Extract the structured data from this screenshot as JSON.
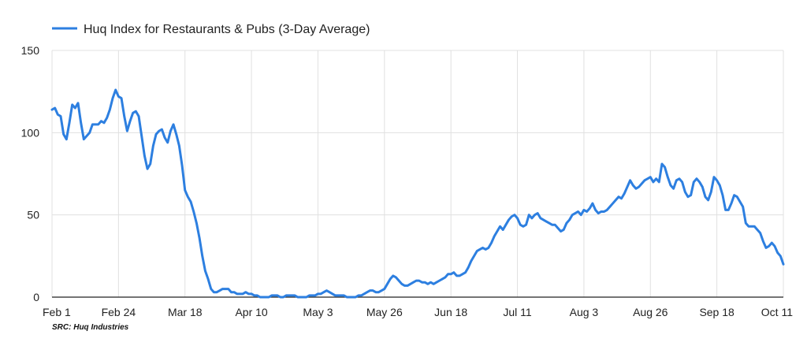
{
  "chart_data": {
    "type": "line",
    "title": "",
    "xlabel": "",
    "ylabel": "",
    "ylim": [
      0,
      150
    ],
    "y_ticks": [
      0,
      50,
      100,
      150
    ],
    "grid": true,
    "legend_position": "top-left",
    "x_ticks": [
      {
        "label": "Feb 1",
        "day": 0
      },
      {
        "label": "Feb 24",
        "day": 23
      },
      {
        "label": "Mar 18",
        "day": 46
      },
      {
        "label": "Apr 10",
        "day": 69
      },
      {
        "label": "May 3",
        "day": 92
      },
      {
        "label": "May 26",
        "day": 115
      },
      {
        "label": "Jun 18",
        "day": 138
      },
      {
        "label": "Jul 11",
        "day": 161
      },
      {
        "label": "Aug 3",
        "day": 184
      },
      {
        "label": "Aug 26",
        "day": 207
      },
      {
        "label": "Sep 18",
        "day": 230
      },
      {
        "label": "Oct 11",
        "day": 253
      }
    ],
    "series": [
      {
        "name": "Huq Index for Restaurants & Pubs (3-Day Average)",
        "color": "#2d7fe0",
        "points": [
          [
            0,
            114
          ],
          [
            1,
            115
          ],
          [
            2,
            111
          ],
          [
            3,
            110
          ],
          [
            4,
            99
          ],
          [
            5,
            96
          ],
          [
            6,
            106
          ],
          [
            7,
            117
          ],
          [
            8,
            115
          ],
          [
            9,
            118
          ],
          [
            10,
            106
          ],
          [
            11,
            96
          ],
          [
            12,
            98
          ],
          [
            13,
            100
          ],
          [
            14,
            105
          ],
          [
            15,
            105
          ],
          [
            16,
            105
          ],
          [
            17,
            107
          ],
          [
            18,
            106
          ],
          [
            19,
            109
          ],
          [
            20,
            114
          ],
          [
            21,
            121
          ],
          [
            22,
            126
          ],
          [
            23,
            122
          ],
          [
            24,
            121
          ],
          [
            25,
            110
          ],
          [
            26,
            101
          ],
          [
            27,
            107
          ],
          [
            28,
            112
          ],
          [
            29,
            113
          ],
          [
            30,
            110
          ],
          [
            31,
            98
          ],
          [
            32,
            86
          ],
          [
            33,
            78
          ],
          [
            34,
            81
          ],
          [
            35,
            92
          ],
          [
            36,
            99
          ],
          [
            37,
            101
          ],
          [
            38,
            102
          ],
          [
            39,
            97
          ],
          [
            40,
            94
          ],
          [
            41,
            101
          ],
          [
            42,
            105
          ],
          [
            43,
            99
          ],
          [
            44,
            92
          ],
          [
            45,
            80
          ],
          [
            46,
            65
          ],
          [
            47,
            61
          ],
          [
            48,
            58
          ],
          [
            49,
            52
          ],
          [
            50,
            45
          ],
          [
            51,
            36
          ],
          [
            52,
            25
          ],
          [
            53,
            16
          ],
          [
            54,
            11
          ],
          [
            55,
            5
          ],
          [
            56,
            3
          ],
          [
            57,
            3
          ],
          [
            58,
            4
          ],
          [
            59,
            5
          ],
          [
            60,
            5
          ],
          [
            61,
            5
          ],
          [
            62,
            3
          ],
          [
            63,
            3
          ],
          [
            64,
            2
          ],
          [
            65,
            2
          ],
          [
            66,
            2
          ],
          [
            67,
            3
          ],
          [
            68,
            2
          ],
          [
            69,
            2
          ],
          [
            70,
            1
          ],
          [
            71,
            1
          ],
          [
            72,
            0
          ],
          [
            73,
            0
          ],
          [
            74,
            0
          ],
          [
            75,
            0
          ],
          [
            76,
            1
          ],
          [
            77,
            1
          ],
          [
            78,
            1
          ],
          [
            79,
            0
          ],
          [
            80,
            0
          ],
          [
            81,
            1
          ],
          [
            82,
            1
          ],
          [
            83,
            1
          ],
          [
            84,
            1
          ],
          [
            85,
            0
          ],
          [
            86,
            0
          ],
          [
            87,
            0
          ],
          [
            88,
            0
          ],
          [
            89,
            1
          ],
          [
            90,
            1
          ],
          [
            91,
            1
          ],
          [
            92,
            2
          ],
          [
            93,
            2
          ],
          [
            94,
            3
          ],
          [
            95,
            4
          ],
          [
            96,
            3
          ],
          [
            97,
            2
          ],
          [
            98,
            1
          ],
          [
            99,
            1
          ],
          [
            100,
            1
          ],
          [
            101,
            1
          ],
          [
            102,
            0
          ],
          [
            103,
            0
          ],
          [
            104,
            0
          ],
          [
            105,
            0
          ],
          [
            106,
            1
          ],
          [
            107,
            1
          ],
          [
            108,
            2
          ],
          [
            109,
            3
          ],
          [
            110,
            4
          ],
          [
            111,
            4
          ],
          [
            112,
            3
          ],
          [
            113,
            3
          ],
          [
            114,
            4
          ],
          [
            115,
            5
          ],
          [
            116,
            8
          ],
          [
            117,
            11
          ],
          [
            118,
            13
          ],
          [
            119,
            12
          ],
          [
            120,
            10
          ],
          [
            121,
            8
          ],
          [
            122,
            7
          ],
          [
            123,
            7
          ],
          [
            124,
            8
          ],
          [
            125,
            9
          ],
          [
            126,
            10
          ],
          [
            127,
            10
          ],
          [
            128,
            9
          ],
          [
            129,
            9
          ],
          [
            130,
            8
          ],
          [
            131,
            9
          ],
          [
            132,
            8
          ],
          [
            133,
            9
          ],
          [
            134,
            10
          ],
          [
            135,
            11
          ],
          [
            136,
            12
          ],
          [
            137,
            14
          ],
          [
            138,
            14
          ],
          [
            139,
            15
          ],
          [
            140,
            13
          ],
          [
            141,
            13
          ],
          [
            142,
            14
          ],
          [
            143,
            15
          ],
          [
            144,
            18
          ],
          [
            145,
            22
          ],
          [
            146,
            25
          ],
          [
            147,
            28
          ],
          [
            148,
            29
          ],
          [
            149,
            30
          ],
          [
            150,
            29
          ],
          [
            151,
            30
          ],
          [
            152,
            33
          ],
          [
            153,
            37
          ],
          [
            154,
            40
          ],
          [
            155,
            43
          ],
          [
            156,
            41
          ],
          [
            157,
            44
          ],
          [
            158,
            47
          ],
          [
            159,
            49
          ],
          [
            160,
            50
          ],
          [
            161,
            48
          ],
          [
            162,
            44
          ],
          [
            163,
            43
          ],
          [
            164,
            44
          ],
          [
            165,
            50
          ],
          [
            166,
            48
          ],
          [
            167,
            50
          ],
          [
            168,
            51
          ],
          [
            169,
            48
          ],
          [
            170,
            47
          ],
          [
            171,
            46
          ],
          [
            172,
            45
          ],
          [
            173,
            44
          ],
          [
            174,
            44
          ],
          [
            175,
            42
          ],
          [
            176,
            40
          ],
          [
            177,
            41
          ],
          [
            178,
            45
          ],
          [
            179,
            47
          ],
          [
            180,
            50
          ],
          [
            181,
            51
          ],
          [
            182,
            52
          ],
          [
            183,
            50
          ],
          [
            184,
            53
          ],
          [
            185,
            52
          ],
          [
            186,
            54
          ],
          [
            187,
            57
          ],
          [
            188,
            53
          ],
          [
            189,
            51
          ],
          [
            190,
            52
          ],
          [
            191,
            52
          ],
          [
            192,
            53
          ],
          [
            193,
            55
          ],
          [
            194,
            57
          ],
          [
            195,
            59
          ],
          [
            196,
            61
          ],
          [
            197,
            60
          ],
          [
            198,
            63
          ],
          [
            199,
            67
          ],
          [
            200,
            71
          ],
          [
            201,
            68
          ],
          [
            202,
            66
          ],
          [
            203,
            67
          ],
          [
            204,
            69
          ],
          [
            205,
            71
          ],
          [
            206,
            72
          ],
          [
            207,
            73
          ],
          [
            208,
            70
          ],
          [
            209,
            72
          ],
          [
            210,
            70
          ],
          [
            211,
            81
          ],
          [
            212,
            79
          ],
          [
            213,
            73
          ],
          [
            214,
            68
          ],
          [
            215,
            66
          ],
          [
            216,
            71
          ],
          [
            217,
            72
          ],
          [
            218,
            70
          ],
          [
            219,
            64
          ],
          [
            220,
            61
          ],
          [
            221,
            62
          ],
          [
            222,
            70
          ],
          [
            223,
            72
          ],
          [
            224,
            70
          ],
          [
            225,
            67
          ],
          [
            226,
            61
          ],
          [
            227,
            59
          ],
          [
            228,
            64
          ],
          [
            229,
            73
          ],
          [
            230,
            71
          ],
          [
            231,
            68
          ],
          [
            232,
            62
          ],
          [
            233,
            53
          ],
          [
            234,
            53
          ],
          [
            235,
            57
          ],
          [
            236,
            62
          ],
          [
            237,
            61
          ],
          [
            238,
            58
          ],
          [
            239,
            55
          ],
          [
            240,
            45
          ],
          [
            241,
            43
          ],
          [
            242,
            43
          ],
          [
            243,
            43
          ],
          [
            244,
            41
          ],
          [
            245,
            39
          ],
          [
            246,
            34
          ],
          [
            247,
            30
          ],
          [
            248,
            31
          ],
          [
            249,
            33
          ],
          [
            250,
            31
          ],
          [
            251,
            27
          ],
          [
            252,
            25
          ],
          [
            253,
            20
          ]
        ]
      }
    ],
    "source": "SRC: Huq Industries"
  }
}
